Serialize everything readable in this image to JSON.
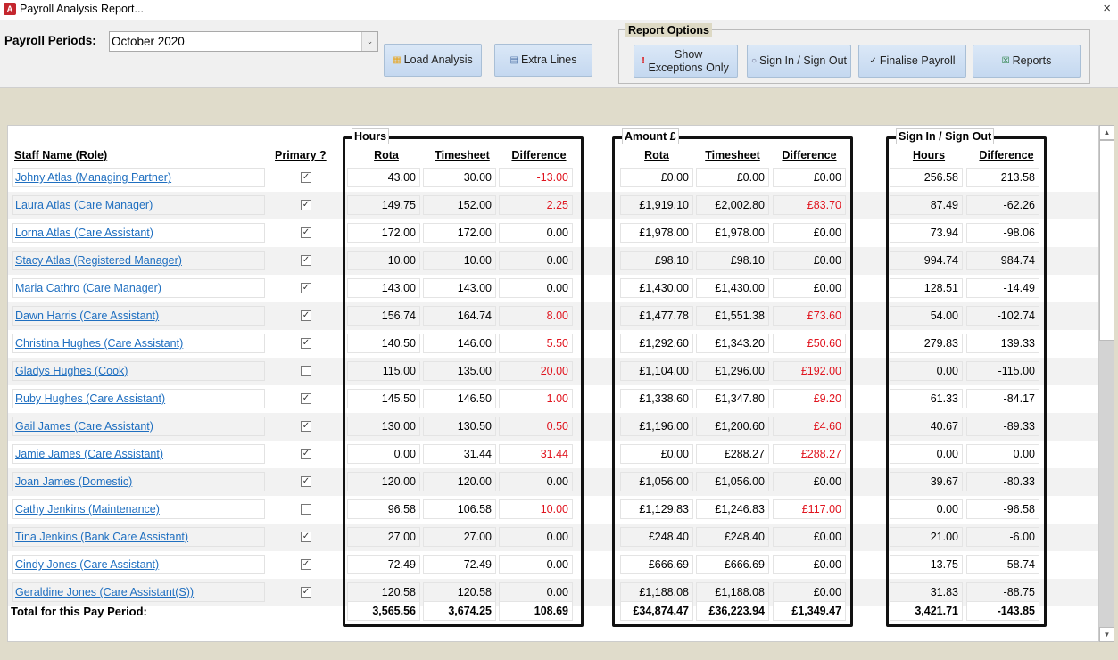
{
  "window": {
    "title": "Payroll Analysis Report...",
    "close_icon": "×"
  },
  "toolbar": {
    "period_label": "Payroll Periods:",
    "period_value": "October 2020",
    "load_label": "Load Analysis",
    "extra_label": "Extra Lines",
    "options_label": "Report Options",
    "exceptions_label": "Show Exceptions Only",
    "signin_label": "Sign In / Sign Out",
    "finalise_label": "Finalise Payroll",
    "reports_label": "Reports"
  },
  "headers": {
    "name": "Staff Name (Role)",
    "primary": "Primary ?",
    "hours_group": "Hours",
    "amount_group": "Amount £",
    "sign_group": "Sign In / Sign Out",
    "rota": "Rota",
    "timesheet": "Timesheet",
    "difference": "Difference",
    "hours": "Hours"
  },
  "colors": {
    "exception": "#e0141e",
    "link": "#1f6fc0"
  },
  "rows": [
    {
      "name": "Johny Atlas (Managing Partner)",
      "primary": true,
      "h_rota": "43.00",
      "h_ts": "30.00",
      "h_diff": "-13.00",
      "a_rota": "£0.00",
      "a_ts": "£0.00",
      "a_diff": "£0.00",
      "s_hours": "256.58",
      "s_diff": "213.58",
      "h_exc": true,
      "a_exc": false
    },
    {
      "name": "Laura Atlas (Care Manager)",
      "primary": true,
      "h_rota": "149.75",
      "h_ts": "152.00",
      "h_diff": "2.25",
      "a_rota": "£1,919.10",
      "a_ts": "£2,002.80",
      "a_diff": "£83.70",
      "s_hours": "87.49",
      "s_diff": "-62.26",
      "h_exc": true,
      "a_exc": true
    },
    {
      "name": "Lorna Atlas (Care Assistant)",
      "primary": true,
      "h_rota": "172.00",
      "h_ts": "172.00",
      "h_diff": "0.00",
      "a_rota": "£1,978.00",
      "a_ts": "£1,978.00",
      "a_diff": "£0.00",
      "s_hours": "73.94",
      "s_diff": "-98.06",
      "h_exc": false,
      "a_exc": false
    },
    {
      "name": "Stacy Atlas (Registered Manager)",
      "primary": true,
      "h_rota": "10.00",
      "h_ts": "10.00",
      "h_diff": "0.00",
      "a_rota": "£98.10",
      "a_ts": "£98.10",
      "a_diff": "£0.00",
      "s_hours": "994.74",
      "s_diff": "984.74",
      "h_exc": false,
      "a_exc": false
    },
    {
      "name": "Maria Cathro (Care Manager)",
      "primary": true,
      "h_rota": "143.00",
      "h_ts": "143.00",
      "h_diff": "0.00",
      "a_rota": "£1,430.00",
      "a_ts": "£1,430.00",
      "a_diff": "£0.00",
      "s_hours": "128.51",
      "s_diff": "-14.49",
      "h_exc": false,
      "a_exc": false
    },
    {
      "name": "Dawn Harris (Care Assistant)",
      "primary": true,
      "h_rota": "156.74",
      "h_ts": "164.74",
      "h_diff": "8.00",
      "a_rota": "£1,477.78",
      "a_ts": "£1,551.38",
      "a_diff": "£73.60",
      "s_hours": "54.00",
      "s_diff": "-102.74",
      "h_exc": true,
      "a_exc": true
    },
    {
      "name": "Christina Hughes (Care Assistant)",
      "primary": true,
      "h_rota": "140.50",
      "h_ts": "146.00",
      "h_diff": "5.50",
      "a_rota": "£1,292.60",
      "a_ts": "£1,343.20",
      "a_diff": "£50.60",
      "s_hours": "279.83",
      "s_diff": "139.33",
      "h_exc": true,
      "a_exc": true
    },
    {
      "name": "Gladys Hughes (Cook)",
      "primary": false,
      "h_rota": "115.00",
      "h_ts": "135.00",
      "h_diff": "20.00",
      "a_rota": "£1,104.00",
      "a_ts": "£1,296.00",
      "a_diff": "£192.00",
      "s_hours": "0.00",
      "s_diff": "-115.00",
      "h_exc": true,
      "a_exc": true
    },
    {
      "name": "Ruby Hughes (Care Assistant)",
      "primary": true,
      "h_rota": "145.50",
      "h_ts": "146.50",
      "h_diff": "1.00",
      "a_rota": "£1,338.60",
      "a_ts": "£1,347.80",
      "a_diff": "£9.20",
      "s_hours": "61.33",
      "s_diff": "-84.17",
      "h_exc": true,
      "a_exc": true
    },
    {
      "name": "Gail James (Care Assistant)",
      "primary": true,
      "h_rota": "130.00",
      "h_ts": "130.50",
      "h_diff": "0.50",
      "a_rota": "£1,196.00",
      "a_ts": "£1,200.60",
      "a_diff": "£4.60",
      "s_hours": "40.67",
      "s_diff": "-89.33",
      "h_exc": true,
      "a_exc": true
    },
    {
      "name": "Jamie James (Care Assistant)",
      "primary": true,
      "h_rota": "0.00",
      "h_ts": "31.44",
      "h_diff": "31.44",
      "a_rota": "£0.00",
      "a_ts": "£288.27",
      "a_diff": "£288.27",
      "s_hours": "0.00",
      "s_diff": "0.00",
      "h_exc": true,
      "a_exc": true
    },
    {
      "name": "Joan James (Domestic)",
      "primary": true,
      "h_rota": "120.00",
      "h_ts": "120.00",
      "h_diff": "0.00",
      "a_rota": "£1,056.00",
      "a_ts": "£1,056.00",
      "a_diff": "£0.00",
      "s_hours": "39.67",
      "s_diff": "-80.33",
      "h_exc": false,
      "a_exc": false
    },
    {
      "name": "Cathy Jenkins (Maintenance)",
      "primary": false,
      "h_rota": "96.58",
      "h_ts": "106.58",
      "h_diff": "10.00",
      "a_rota": "£1,129.83",
      "a_ts": "£1,246.83",
      "a_diff": "£117.00",
      "s_hours": "0.00",
      "s_diff": "-96.58",
      "h_exc": true,
      "a_exc": true
    },
    {
      "name": "Tina Jenkins (Bank Care Assistant)",
      "primary": true,
      "h_rota": "27.00",
      "h_ts": "27.00",
      "h_diff": "0.00",
      "a_rota": "£248.40",
      "a_ts": "£248.40",
      "a_diff": "£0.00",
      "s_hours": "21.00",
      "s_diff": "-6.00",
      "h_exc": false,
      "a_exc": false
    },
    {
      "name": "Cindy Jones (Care Assistant)",
      "primary": true,
      "h_rota": "72.49",
      "h_ts": "72.49",
      "h_diff": "0.00",
      "a_rota": "£666.69",
      "a_ts": "£666.69",
      "a_diff": "£0.00",
      "s_hours": "13.75",
      "s_diff": "-58.74",
      "h_exc": false,
      "a_exc": false
    },
    {
      "name": "Geraldine Jones (Care Assistant(S))",
      "primary": true,
      "h_rota": "120.58",
      "h_ts": "120.58",
      "h_diff": "0.00",
      "a_rota": "£1,188.08",
      "a_ts": "£1,188.08",
      "a_diff": "£0.00",
      "s_hours": "31.83",
      "s_diff": "-88.75",
      "h_exc": false,
      "a_exc": false
    }
  ],
  "totals": {
    "label": "Total for this Pay Period:",
    "h_rota": "3,565.56",
    "h_ts": "3,674.25",
    "h_diff": "108.69",
    "a_rota": "£34,874.47",
    "a_ts": "£36,223.94",
    "a_diff": "£1,349.47",
    "s_hours": "3,421.71",
    "s_diff": "-143.85"
  }
}
